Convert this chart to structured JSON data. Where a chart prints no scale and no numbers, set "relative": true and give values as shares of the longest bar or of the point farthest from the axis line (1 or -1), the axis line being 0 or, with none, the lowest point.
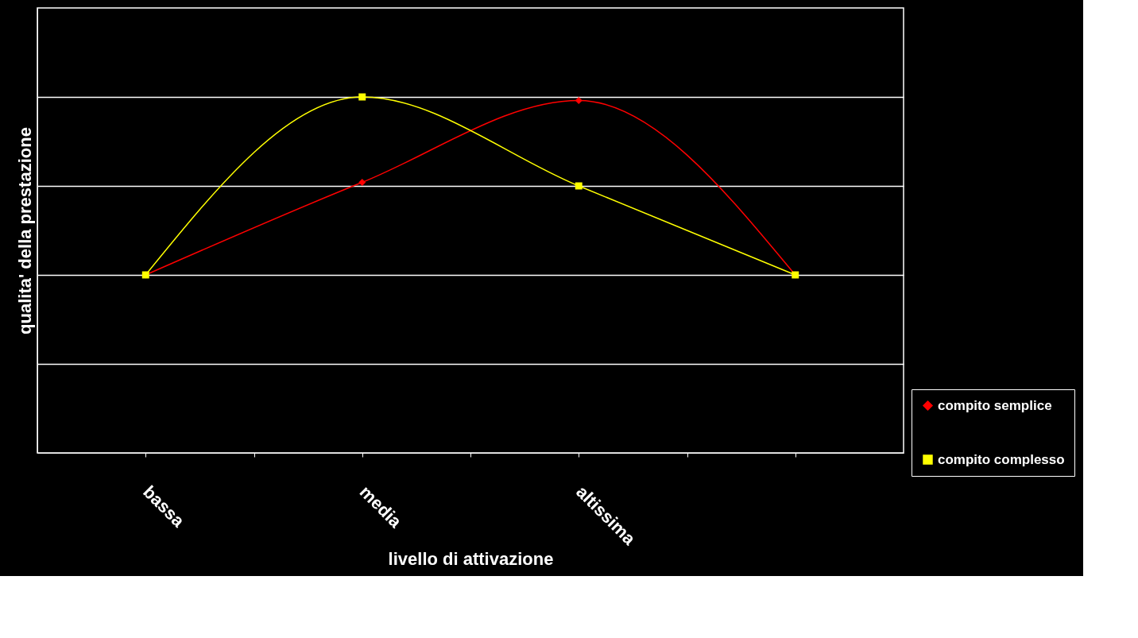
{
  "chart_data": {
    "type": "line",
    "xlabel": "livello di attivazione",
    "ylabel": "qualita' della prestazione",
    "categories": [
      "bassa",
      "media",
      "altissima",
      null
    ],
    "relative": true,
    "grid": "y",
    "legend": "bottom right",
    "line_style": "solid",
    "series": [
      {
        "name": "compito semplice",
        "color": "#ff0000",
        "marker": "diamond",
        "values": [
          0.5,
          0.76,
          0.99,
          0.5
        ]
      },
      {
        "name": "compito complesso",
        "color": "#ffff00",
        "marker": "square",
        "values": [
          0.5,
          1.0,
          0.75,
          0.5
        ]
      }
    ]
  }
}
